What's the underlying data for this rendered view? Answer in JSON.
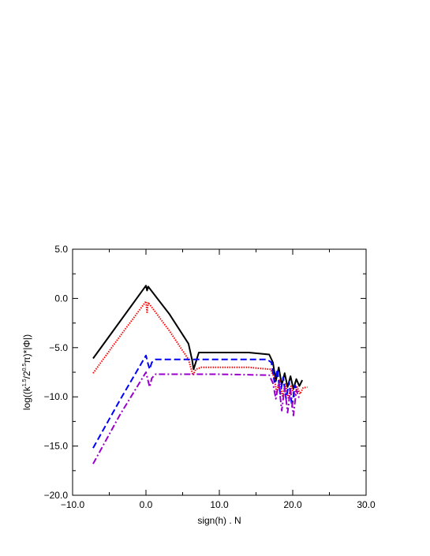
{
  "chart_data": {
    "type": "line",
    "xlabel": "sign(h) . N",
    "ylabel": {
      "prefix": "log((k",
      "sup1": "1.5",
      "mid": "/2",
      "sup2": "0.5",
      "suffix": "π)*|Φ|)"
    },
    "xlim": [
      -10,
      30
    ],
    "ylim": [
      -20,
      5
    ],
    "xticks": [
      -10,
      0,
      10,
      20,
      30
    ],
    "xtick_labels": [
      "−10.0",
      "0.0",
      "10.0",
      "20.0",
      "30.0"
    ],
    "yticks": [
      -20,
      -15,
      -10,
      -5,
      0,
      5
    ],
    "ytick_labels": [
      "−20.0",
      "−15.0",
      "−10.0",
      "−5.0",
      "0.0",
      "5.0"
    ],
    "grid": false,
    "series": [
      {
        "color": "#000000",
        "style": "solid",
        "x": [
          -7.2,
          -3.6,
          0.0,
          0.15,
          0.3,
          3.2,
          5.8,
          6.3,
          6.5,
          7.2,
          10.0,
          14.0,
          16.8,
          17.3,
          17.7,
          18.1,
          18.5,
          18.9,
          19.3,
          19.7,
          20.1,
          20.5,
          20.9,
          21.3
        ],
        "y": [
          -6.1,
          -2.4,
          1.3,
          0.8,
          1.2,
          -1.6,
          -4.6,
          -6.3,
          -7.2,
          -5.5,
          -5.5,
          -5.5,
          -5.7,
          -6.5,
          -8.4,
          -7.0,
          -8.8,
          -7.6,
          -9.0,
          -7.9,
          -9.2,
          -8.2,
          -8.9,
          -8.3
        ]
      },
      {
        "color": "#ff0000",
        "style": "dotted",
        "x": [
          -7.2,
          -3.6,
          0.0,
          0.15,
          0.3,
          3.2,
          5.8,
          6.4,
          6.8,
          7.5,
          10.0,
          14.0,
          17.0,
          17.5,
          17.8,
          18.2,
          18.6,
          19.0,
          19.4,
          19.8,
          20.2,
          20.6,
          21.0,
          21.4,
          22.0
        ],
        "y": [
          -7.6,
          -3.9,
          -0.3,
          -1.4,
          -0.4,
          -3.3,
          -6.2,
          -7.8,
          -7.2,
          -7.0,
          -7.0,
          -7.0,
          -7.2,
          -8.1,
          -9.6,
          -8.3,
          -9.9,
          -8.7,
          -10.1,
          -8.8,
          -10.0,
          -9.0,
          -9.7,
          -9.1,
          -9.0
        ]
      },
      {
        "color": "#0000ff",
        "style": "dashed",
        "x": [
          -7.2,
          -3.6,
          0.0,
          0.3,
          0.5,
          0.8,
          1.3,
          4.0,
          10.0,
          16.5,
          17.1,
          17.5,
          17.9,
          18.3,
          18.7,
          19.1,
          19.5,
          19.9,
          20.3,
          20.7
        ],
        "y": [
          -15.2,
          -10.4,
          -5.8,
          -6.7,
          -7.2,
          -6.5,
          -6.2,
          -6.2,
          -6.2,
          -6.2,
          -6.5,
          -8.5,
          -7.2,
          -9.7,
          -8.0,
          -10.2,
          -8.5,
          -11.0,
          -8.8,
          -9.5
        ]
      },
      {
        "color": "#9900cc",
        "style": "dashdot",
        "x": [
          -7.2,
          -3.6,
          0.0,
          0.3,
          0.5,
          0.8,
          1.3,
          4.0,
          10.0,
          16.8,
          17.3,
          17.7,
          18.1,
          18.5,
          18.9,
          19.3,
          19.7,
          20.1,
          20.5,
          20.9
        ],
        "y": [
          -16.8,
          -11.9,
          -7.5,
          -8.4,
          -9.0,
          -8.1,
          -7.7,
          -7.7,
          -7.7,
          -7.8,
          -8.6,
          -10.2,
          -8.6,
          -11.4,
          -9.0,
          -11.6,
          -9.2,
          -11.9,
          -9.3,
          -10.2
        ]
      }
    ]
  }
}
